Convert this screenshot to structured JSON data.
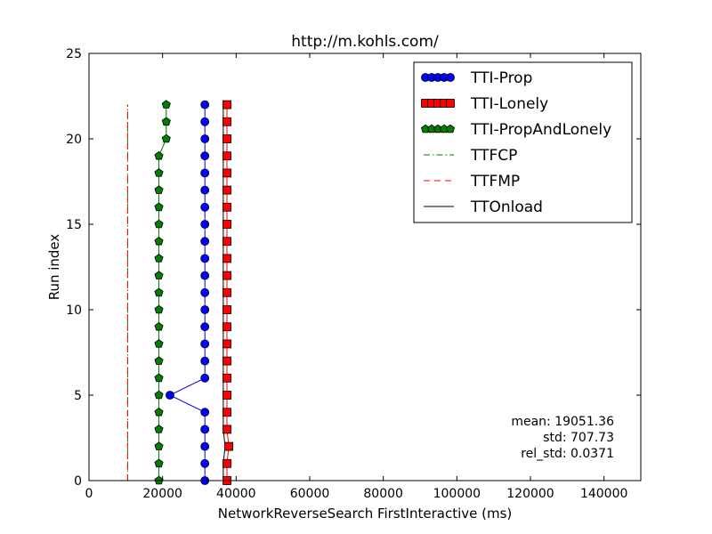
{
  "chart_data": {
    "type": "line",
    "title": "http://m.kohls.com/",
    "xlabel": "NetworkReverseSearch FirstInteractive (ms)",
    "ylabel": "Run index",
    "xlim": [
      0,
      150000
    ],
    "ylim": [
      0,
      25
    ],
    "xticks": [
      0,
      20000,
      40000,
      60000,
      80000,
      100000,
      120000,
      140000
    ],
    "xtick_labels": [
      "0",
      "20000",
      "40000",
      "60000",
      "80000",
      "100000",
      "120000",
      "140000"
    ],
    "yticks": [
      0,
      5,
      10,
      15,
      20,
      25
    ],
    "ytick_labels": [
      "0",
      "5",
      "10",
      "15",
      "20",
      "25"
    ],
    "grid": false,
    "legend_position": "top-right",
    "series": [
      {
        "name": "TTI-Prop",
        "color": "#0000ff",
        "marker": "circle",
        "line": "solid",
        "points": [
          [
            31500,
            0
          ],
          [
            31500,
            1
          ],
          [
            31500,
            2
          ],
          [
            31500,
            3
          ],
          [
            31500,
            4
          ],
          [
            22000,
            5
          ],
          [
            31500,
            6
          ],
          [
            31500,
            7
          ],
          [
            31500,
            8
          ],
          [
            31500,
            9
          ],
          [
            31500,
            10
          ],
          [
            31500,
            11
          ],
          [
            31500,
            12
          ],
          [
            31500,
            13
          ],
          [
            31500,
            14
          ],
          [
            31500,
            15
          ],
          [
            31500,
            16
          ],
          [
            31500,
            17
          ],
          [
            31500,
            18
          ],
          [
            31500,
            19
          ],
          [
            31500,
            20
          ],
          [
            31500,
            21
          ],
          [
            31500,
            22
          ]
        ]
      },
      {
        "name": "TTI-Lonely",
        "color": "#ff0000",
        "marker": "square",
        "line": "solid",
        "points": [
          [
            37500,
            0
          ],
          [
            37500,
            1
          ],
          [
            38000,
            2
          ],
          [
            37500,
            3
          ],
          [
            37500,
            4
          ],
          [
            37500,
            5
          ],
          [
            37500,
            6
          ],
          [
            37500,
            7
          ],
          [
            37500,
            8
          ],
          [
            37500,
            9
          ],
          [
            37500,
            10
          ],
          [
            37500,
            11
          ],
          [
            37500,
            12
          ],
          [
            37500,
            13
          ],
          [
            37500,
            14
          ],
          [
            37500,
            15
          ],
          [
            37500,
            16
          ],
          [
            37500,
            17
          ],
          [
            37500,
            18
          ],
          [
            37500,
            19
          ],
          [
            37500,
            20
          ],
          [
            37500,
            21
          ],
          [
            37500,
            22
          ]
        ]
      },
      {
        "name": "TTI-PropAndLonely",
        "color": "#007f00",
        "marker": "pentagon",
        "line": "solid",
        "points": [
          [
            19000,
            0
          ],
          [
            19000,
            1
          ],
          [
            19000,
            2
          ],
          [
            19000,
            3
          ],
          [
            19000,
            4
          ],
          [
            19000,
            5
          ],
          [
            19000,
            6
          ],
          [
            19000,
            7
          ],
          [
            19000,
            8
          ],
          [
            19000,
            9
          ],
          [
            19000,
            10
          ],
          [
            19000,
            11
          ],
          [
            19000,
            12
          ],
          [
            19000,
            13
          ],
          [
            19000,
            14
          ],
          [
            19000,
            15
          ],
          [
            19000,
            16
          ],
          [
            19000,
            17
          ],
          [
            19000,
            18
          ],
          [
            19000,
            19
          ],
          [
            21000,
            20
          ],
          [
            21000,
            21
          ],
          [
            21000,
            22
          ]
        ]
      },
      {
        "name": "TTFCP",
        "color": "#007f00",
        "marker": "none",
        "line": "dashdot",
        "points": [
          [
            10500,
            0
          ],
          [
            10500,
            22
          ]
        ]
      },
      {
        "name": "TTFMP",
        "color": "#ff0000",
        "marker": "none",
        "line": "dashed",
        "points": [
          [
            10500,
            0
          ],
          [
            10500,
            22
          ]
        ]
      },
      {
        "name": "TTOnload",
        "color": "#000000",
        "marker": "none",
        "line": "solid",
        "points": [
          [
            36500,
            0
          ],
          [
            36500,
            1
          ],
          [
            37000,
            2
          ],
          [
            36500,
            3
          ],
          [
            36500,
            4
          ],
          [
            36500,
            5
          ],
          [
            36500,
            6
          ],
          [
            36500,
            7
          ],
          [
            36500,
            8
          ],
          [
            36500,
            9
          ],
          [
            36500,
            10
          ],
          [
            36500,
            11
          ],
          [
            36500,
            12
          ],
          [
            36500,
            13
          ],
          [
            36500,
            14
          ],
          [
            36500,
            15
          ],
          [
            36500,
            16
          ],
          [
            36500,
            17
          ],
          [
            36500,
            18
          ],
          [
            36500,
            19
          ],
          [
            36500,
            20
          ],
          [
            36500,
            21
          ],
          [
            36500,
            22
          ]
        ]
      }
    ],
    "annotations": [
      "mean: 19051.36",
      "std: 707.73",
      "rel_std: 0.0371"
    ]
  }
}
